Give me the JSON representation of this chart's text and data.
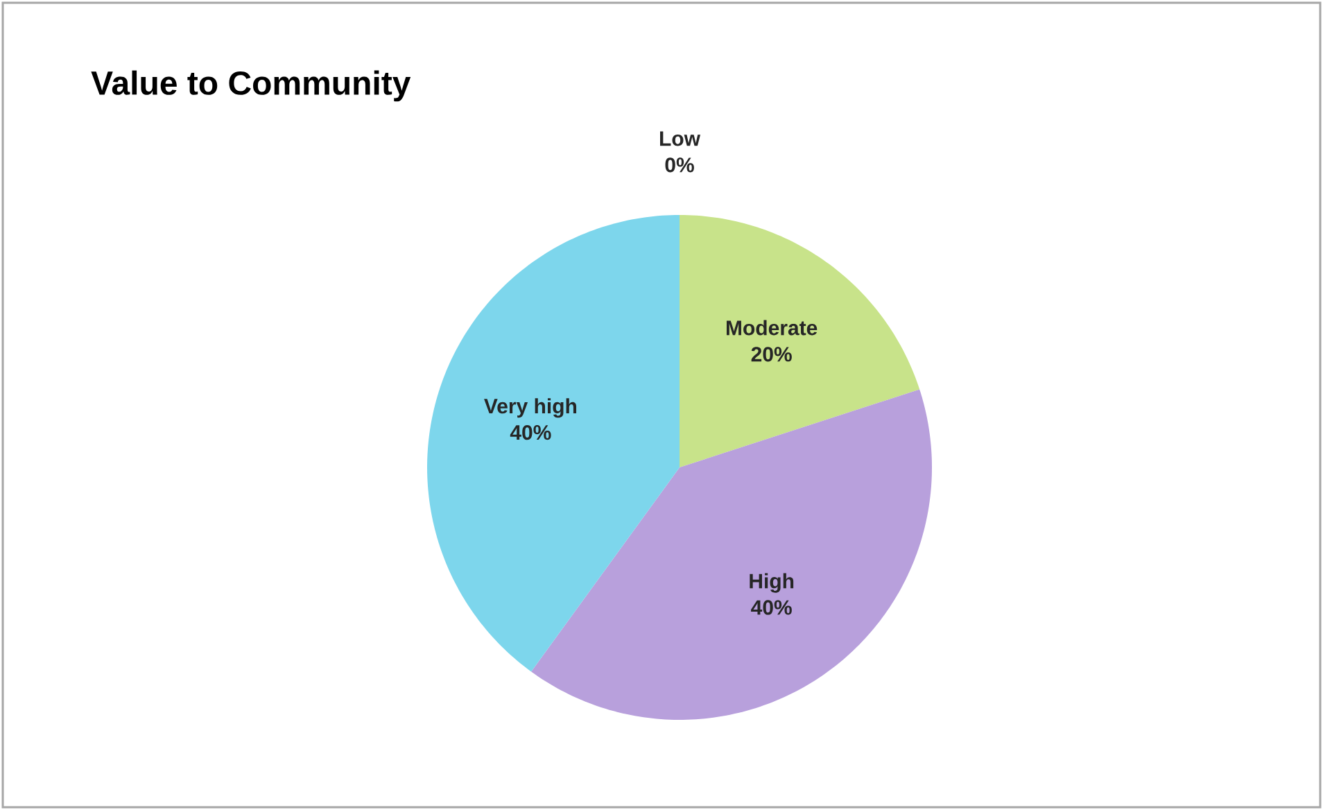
{
  "chart_data": {
    "type": "pie",
    "title": "Value to Community",
    "categories": [
      "Low",
      "Moderate",
      "High",
      "Very high"
    ],
    "values": [
      0,
      20,
      40,
      40
    ],
    "value_labels": [
      "0%",
      "20%",
      "40%",
      "40%"
    ],
    "colors": [
      "#f0a0a0",
      "#c8e38a",
      "#b8a0dc",
      "#7dd6ec"
    ]
  }
}
